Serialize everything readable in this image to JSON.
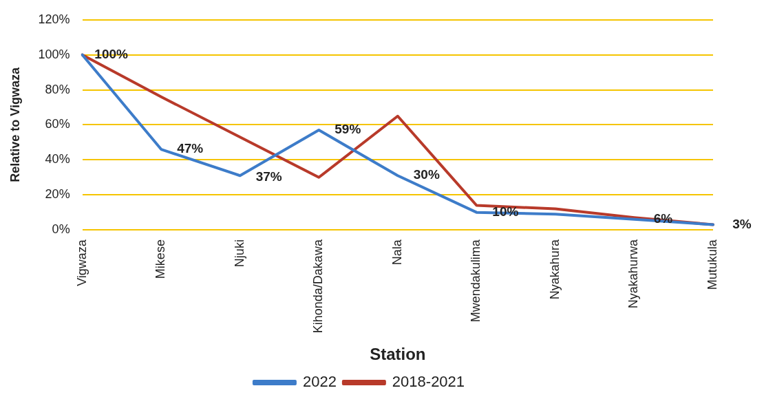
{
  "chart_data": {
    "type": "line",
    "xlabel": "Station",
    "ylabel": "Relative to Vigwaza",
    "categories": [
      "Vigwaza",
      "Mikese",
      "Njuki",
      "Kihonda/Dakawa",
      "Nala",
      "Mwendakulima",
      "Nyakahura",
      "Nyakahurwa",
      "Mutukula"
    ],
    "series": [
      {
        "name": "2022",
        "color": "#3d7cc9",
        "values": [
          100,
          46,
          31,
          57,
          31,
          10,
          9,
          6,
          3
        ]
      },
      {
        "name": "2018-2021",
        "color": "#b83a2a",
        "values": [
          100,
          76,
          53,
          30,
          65,
          14,
          12,
          7,
          3
        ]
      }
    ],
    "ylim": [
      0,
      120
    ],
    "yticks": [
      {
        "value": 0,
        "label": "0%"
      },
      {
        "value": 20,
        "label": "20%"
      },
      {
        "value": 40,
        "label": "40%"
      },
      {
        "value": 60,
        "label": "60%"
      },
      {
        "value": 80,
        "label": "80%"
      },
      {
        "value": 100,
        "label": "100%"
      },
      {
        "value": 120,
        "label": "120%"
      }
    ],
    "grid": "y",
    "legend": "bottom",
    "marker": "none",
    "line_style": "solid",
    "annotations": [
      {
        "text": "100%",
        "x": "Vigwaza",
        "y": 100
      },
      {
        "text": "47%",
        "x": "Mikese",
        "y": 46
      },
      {
        "text": "37%",
        "x": "Njuki",
        "y": 30
      },
      {
        "text": "59%",
        "x": "Kihonda/Dakawa",
        "y": 57
      },
      {
        "text": "30%",
        "x": "Nala",
        "y": 31
      },
      {
        "text": "10%",
        "x": "Mwendakulima",
        "y": 10
      },
      {
        "text": "6%",
        "x": "Nyakahurwa",
        "y": 6
      },
      {
        "text": "3%",
        "x": "Mutukula",
        "y": 3
      }
    ]
  }
}
